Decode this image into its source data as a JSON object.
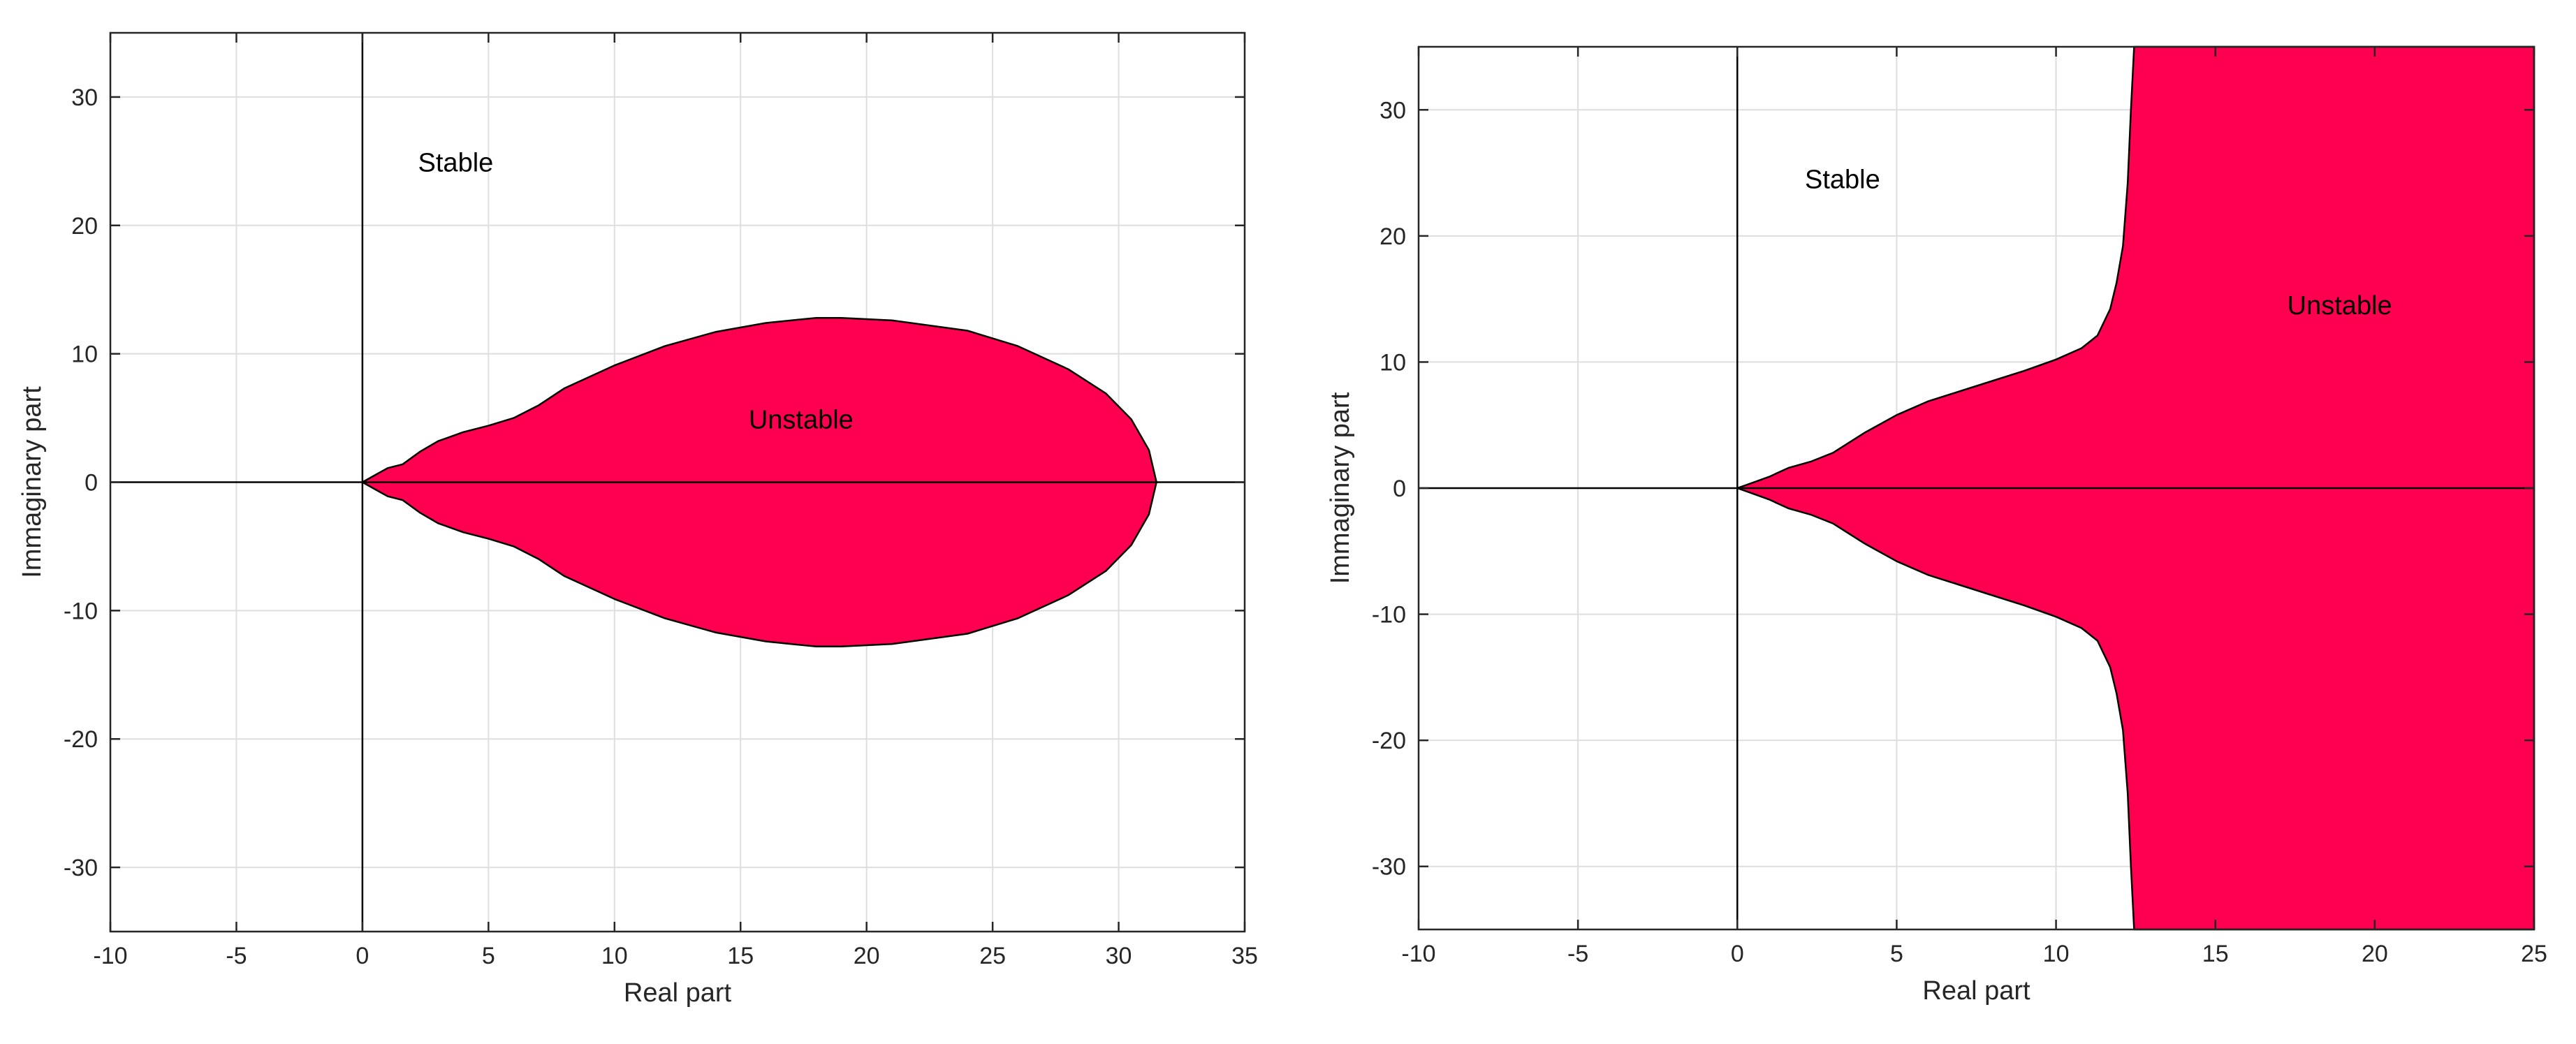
{
  "chart_data": [
    {
      "type": "area",
      "xlabel": "Real part",
      "ylabel": "Immaginary part",
      "xlim": [
        -10,
        35
      ],
      "ylim": [
        -35,
        35
      ],
      "xticks": [
        -10,
        -5,
        0,
        5,
        10,
        15,
        20,
        25,
        30,
        35
      ],
      "yticks": [
        -30,
        -20,
        -10,
        0,
        10,
        20,
        30
      ],
      "grid": true,
      "fill_color": "#ff0050",
      "annotations": [
        {
          "text": "Stable",
          "x": 3.7,
          "y": 24.9
        },
        {
          "text": "Unstable",
          "x": 17.4,
          "y": 4.9
        }
      ],
      "region_upper_boundary": [
        [
          0,
          0
        ],
        [
          0.5,
          0.55
        ],
        [
          1,
          1.1
        ],
        [
          1.6,
          1.4
        ],
        [
          2.3,
          2.4
        ],
        [
          3,
          3.2
        ],
        [
          4,
          3.9
        ],
        [
          5,
          4.4
        ],
        [
          6,
          5.0
        ],
        [
          7,
          6.0
        ],
        [
          8,
          7.3
        ],
        [
          10,
          9.1
        ],
        [
          12,
          10.6
        ],
        [
          14,
          11.7
        ],
        [
          16,
          12.4
        ],
        [
          18,
          12.8
        ],
        [
          19,
          12.8
        ],
        [
          21,
          12.6
        ],
        [
          24,
          11.8
        ],
        [
          26,
          10.6
        ],
        [
          28,
          8.8
        ],
        [
          29.5,
          6.9
        ],
        [
          30.5,
          4.9
        ],
        [
          31.2,
          2.5
        ],
        [
          31.5,
          0
        ]
      ]
    },
    {
      "type": "area",
      "xlabel": "Real part",
      "ylabel": "Immaginary part",
      "xlim": [
        -10,
        25
      ],
      "ylim": [
        -35,
        35
      ],
      "xticks": [
        -10,
        -5,
        0,
        5,
        10,
        15,
        20,
        25
      ],
      "yticks": [
        -30,
        -20,
        -10,
        0,
        10,
        20,
        30
      ],
      "grid": true,
      "fill_color": "#ff0050",
      "annotations": [
        {
          "text": "Stable",
          "x": 3.3,
          "y": 24.5
        },
        {
          "text": "Unstable",
          "x": 18.9,
          "y": 14.5
        }
      ],
      "region_upper_boundary": [
        [
          0,
          0
        ],
        [
          0.5,
          0.45
        ],
        [
          1,
          0.9
        ],
        [
          1.6,
          1.6
        ],
        [
          2.3,
          2.1
        ],
        [
          3,
          2.8
        ],
        [
          4,
          4.4
        ],
        [
          5,
          5.8
        ],
        [
          6,
          6.9
        ],
        [
          7,
          7.7
        ],
        [
          8,
          8.5
        ],
        [
          9,
          9.3
        ],
        [
          10,
          10.2
        ],
        [
          10.8,
          11.1
        ],
        [
          11.3,
          12.1
        ],
        [
          11.7,
          14.2
        ],
        [
          11.9,
          16.3
        ],
        [
          12.1,
          19.2
        ],
        [
          12.25,
          24.2
        ],
        [
          12.35,
          30
        ],
        [
          12.45,
          35
        ],
        [
          25,
          35
        ]
      ]
    }
  ]
}
